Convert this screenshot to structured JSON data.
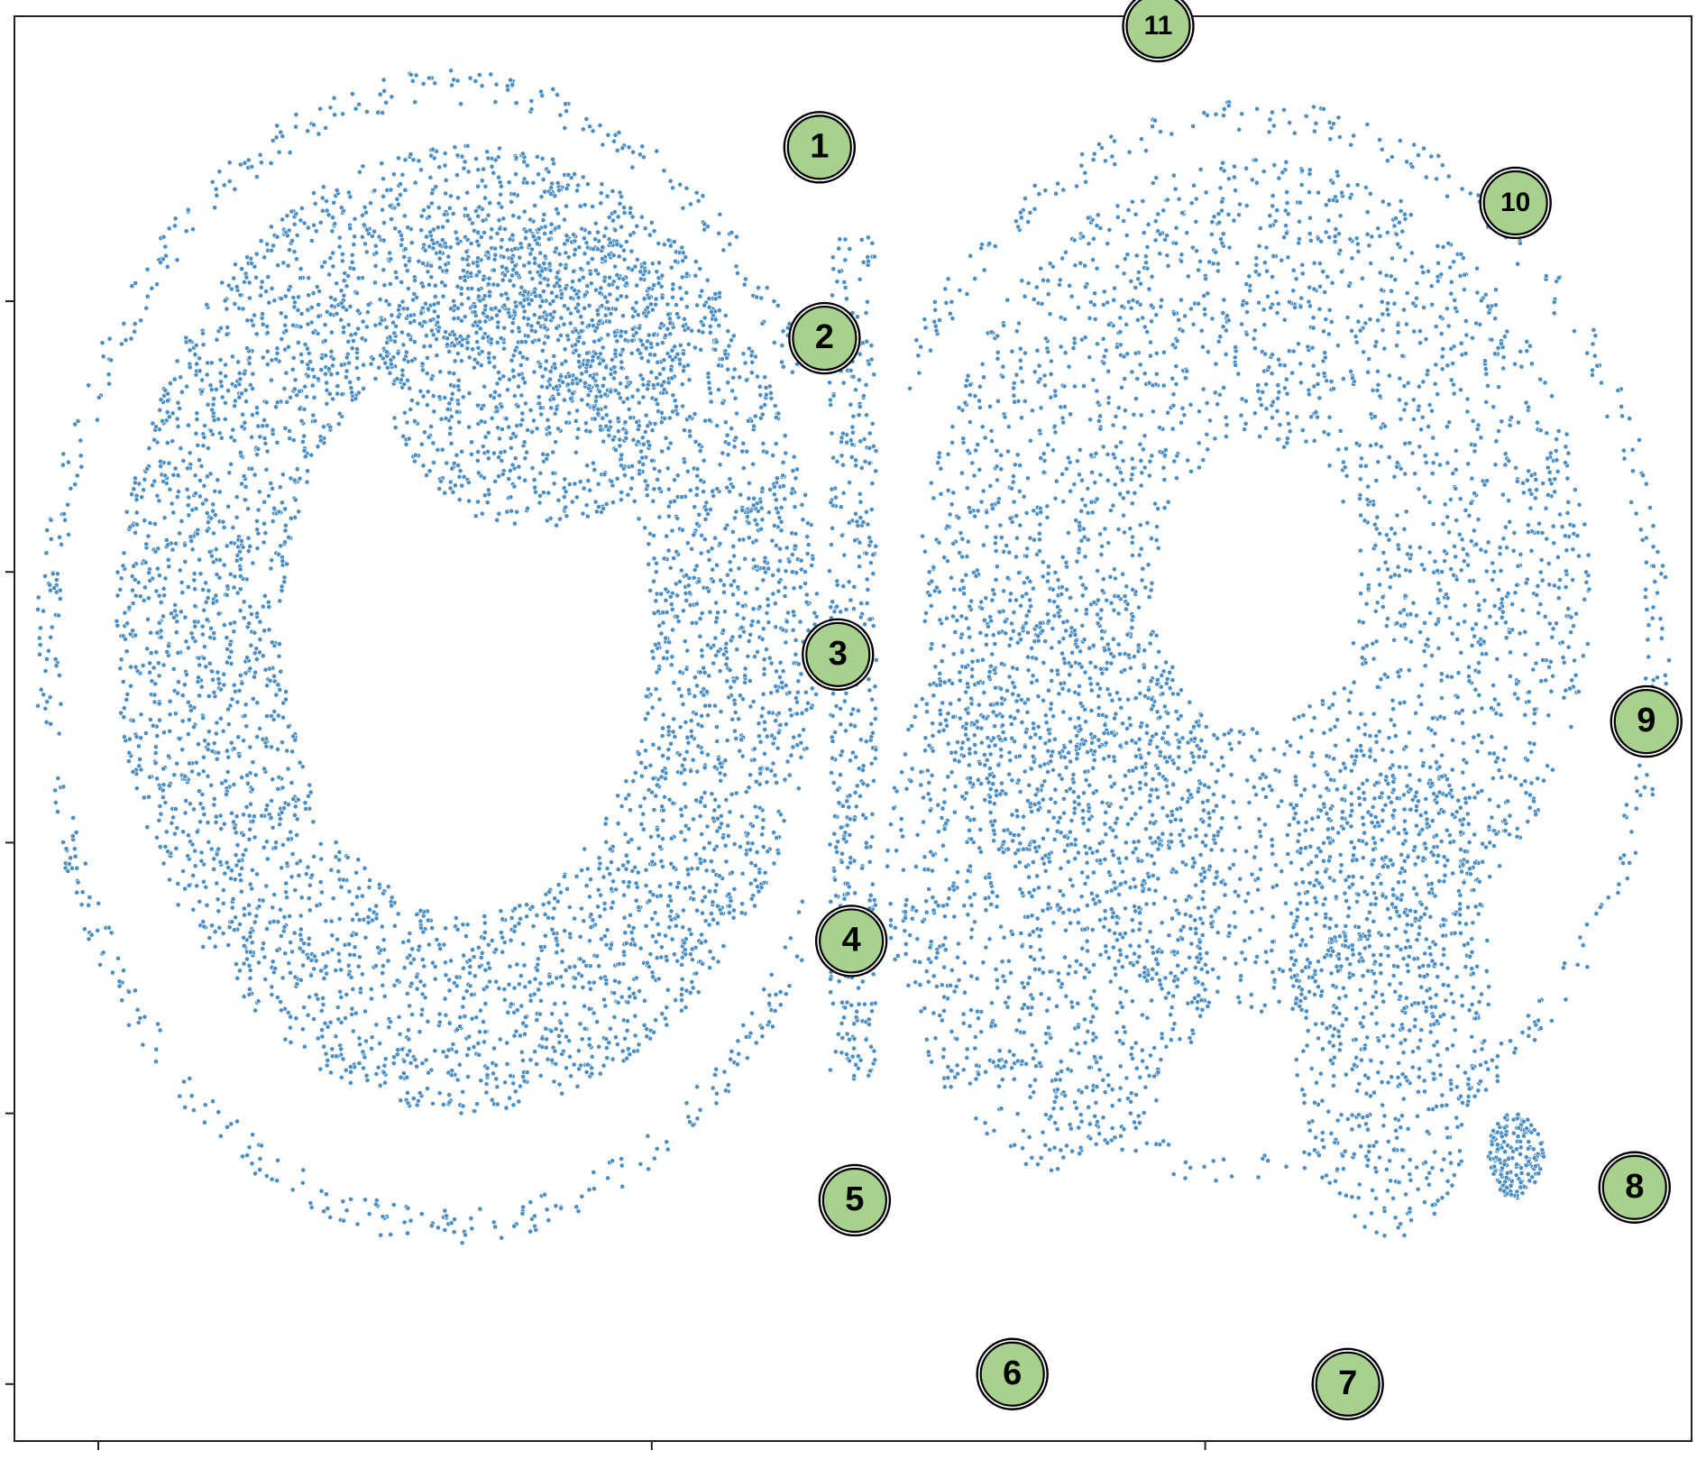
{
  "chart_data": {
    "type": "scatter",
    "title": "",
    "xlabel": "",
    "ylabel": "",
    "grid": false,
    "legend": "none",
    "xlim": [
      0,
      100
    ],
    "ylim": [
      0,
      100
    ],
    "x_ticks": [
      5,
      38,
      71
    ],
    "y_ticks": [
      4,
      23,
      42,
      61,
      80
    ],
    "point_color": "#4a8ec4",
    "point_edge": "#ffffff",
    "point_count_estimate": 10000,
    "density_regions": [
      {
        "shape": "ring",
        "cx": 27,
        "cy": 57,
        "rx": 21,
        "ry": 34,
        "inner_rx": 11,
        "inner_ry": 20,
        "count": 4200
      },
      {
        "shape": "disc",
        "cx": 31,
        "cy": 75,
        "rx": 9,
        "ry": 11,
        "count": 900
      },
      {
        "shape": "ring",
        "cx": 74,
        "cy": 60,
        "rx": 20,
        "ry": 30,
        "inner_rx": 6,
        "inner_ry": 10,
        "count": 2800
      },
      {
        "shape": "disc",
        "cx": 62,
        "cy": 40,
        "rx": 10,
        "ry": 21,
        "count": 1100
      },
      {
        "shape": "disc",
        "cx": 82,
        "cy": 32,
        "rx": 6,
        "ry": 18,
        "count": 700
      },
      {
        "shape": "band",
        "cx": 50,
        "cy": 55,
        "rx": 1.4,
        "ry": 30,
        "count": 420
      },
      {
        "shape": "disc",
        "cx": 89.5,
        "cy": 20,
        "rx": 1.7,
        "ry": 3,
        "count": 170
      },
      {
        "shape": "arc",
        "cx": 26,
        "cy": 55,
        "rx": 24,
        "ry": 40,
        "count": 500
      },
      {
        "shape": "arc",
        "cx": 74,
        "cy": 56,
        "rx": 24,
        "ry": 37,
        "count": 380
      }
    ],
    "annotations": [
      {
        "label": "1",
        "x": 48.0,
        "y": 90.8
      },
      {
        "label": "2",
        "x": 48.3,
        "y": 77.4
      },
      {
        "label": "3",
        "x": 49.1,
        "y": 55.2
      },
      {
        "label": "4",
        "x": 49.9,
        "y": 35.1
      },
      {
        "label": "5",
        "x": 50.1,
        "y": 16.9
      },
      {
        "label": "6",
        "x": 59.5,
        "y": 4.7
      },
      {
        "label": "7",
        "x": 79.5,
        "y": 4.0
      },
      {
        "label": "8",
        "x": 96.6,
        "y": 17.8
      },
      {
        "label": "9",
        "x": 97.3,
        "y": 50.5
      },
      {
        "label": "10",
        "x": 89.5,
        "y": 86.9
      },
      {
        "label": "11",
        "x": 68.2,
        "y": 99.3
      }
    ]
  },
  "marker_style": {
    "fill": "#a9d18e",
    "stroke": "#000000",
    "text_color": "#000000"
  }
}
